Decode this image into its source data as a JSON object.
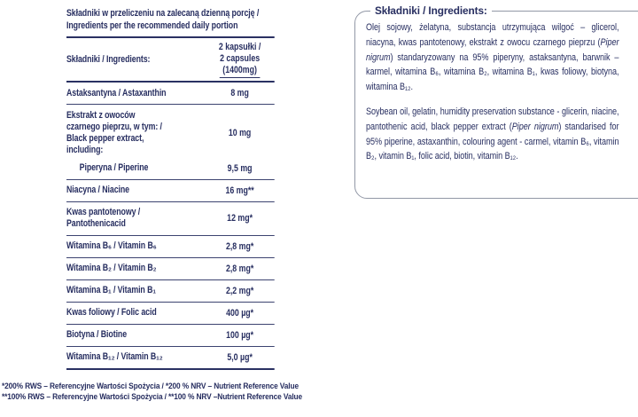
{
  "colors": {
    "ink": "#272e60",
    "rule": "#2a3162",
    "box_border": "#9298a6"
  },
  "table": {
    "title": "Składniki w przeliczeniu na zalecaną dzienną porcję /\nIngredients per the recommended daily portion",
    "header": {
      "label": "Składniki / Ingredients:",
      "amount_line1": "2 kapsułki /",
      "amount_line2": "2 capsules",
      "amount_line3": "(1400mg)"
    },
    "rows": [
      {
        "label": "Astaksantyna / Astaxanthin",
        "value": "8 mg"
      },
      {
        "label": "Ekstrakt z owoców\nczarnego pieprzu, w tym: /\nBlack pepper extract,\nincluding:",
        "value": "10 mg"
      },
      {
        "label": "Piperyna / Piperine",
        "value": "9,5 mg"
      },
      {
        "label": "Niacyna / Niacine",
        "value": "16 mg**"
      },
      {
        "label": "Kwas pantotenowy /\nPantothenicacid",
        "value": "12 mg*"
      },
      {
        "label": "Witamina B₆ / Vitamin B₆",
        "value": "2,8 mg*"
      },
      {
        "label": "Witamina B₂ / Vitamin B₂",
        "value": "2,8 mg*"
      },
      {
        "label": "Witamina B₁ / Vitamin B₁",
        "value": "2,2 mg*"
      },
      {
        "label": "Kwas foliowy / Folic acid",
        "value": "400 µg*"
      },
      {
        "label": "Biotyna / Biotine",
        "value": "100 µg*"
      },
      {
        "label": "Witamina B₁₂ / Vitamin B₁₂",
        "value": "5,0 µg*"
      }
    ],
    "footnotes": [
      "*200% RWS – Referencyjne Wartości Spożycia / *200 % NRV – Nutrient Reference Value",
      "**100% RWS – Referencyjne Wartości Spożycia / **100 % NRV –Nutrient Reference Value"
    ]
  },
  "ingredients_box": {
    "title": "Składniki / Ingredients:",
    "pl": {
      "before": "Olej sojowy, żelatyna, substancja utrzymująca wilgoć – glicerol, niacyna, kwas pantotenowy, ekstrakt z owocu czarnego pieprzu (",
      "italic": "Piper nigrum",
      "after": ") standaryzowany na 95% piperyny, astaksantyna, barwnik – karmel, witamina B₆, witamina B₂, witamina B₁, kwas foliowy, biotyna, witamina B₁₂."
    },
    "en": {
      "before": "Soybean oil, gelatin, humidity preservation substance - glicerin, niacine, pantothenic acid, black pepper extract (",
      "italic": "Piper nigrum",
      "after": ") standarised for 95% piperine, astaxanthin, colouring agent - carmel, vitamin B₆, vitamin B₂, vitamin B₁, folic acid, biotin, vitamin B₁₂."
    }
  }
}
